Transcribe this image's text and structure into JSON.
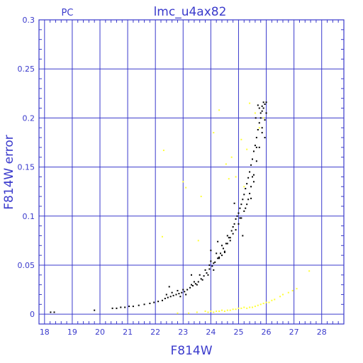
{
  "chart_data": {
    "type": "scatter",
    "title": "lmc_u4ax82",
    "corner_label": "PC",
    "xlabel": "F814W",
    "ylabel": "F814W error",
    "xlim": [
      17.8,
      28.8
    ],
    "ylim": [
      -0.01,
      0.3
    ],
    "xticks": [
      18,
      19,
      20,
      21,
      22,
      23,
      24,
      25,
      26,
      27,
      28
    ],
    "yticks": [
      0,
      0.05,
      0.1,
      0.15,
      0.2,
      0.25,
      0.3
    ],
    "ytick_labels": [
      "0",
      "0.05",
      "0.1",
      "0.15",
      "0.2",
      "0.25",
      "0.3"
    ],
    "grid": true,
    "colors": {
      "frame": "#3a3acc",
      "primary": "#000000",
      "secondary": "#ffff33"
    },
    "series": [
      {
        "color": "#000000",
        "points": [
          [
            18.22,
            0.002
          ],
          [
            18.35,
            0.002
          ],
          [
            19.8,
            0.004
          ],
          [
            20.45,
            0.006
          ],
          [
            20.6,
            0.006
          ],
          [
            20.75,
            0.007
          ],
          [
            20.9,
            0.007
          ],
          [
            21.05,
            0.008
          ],
          [
            21.2,
            0.008
          ],
          [
            21.4,
            0.009
          ],
          [
            21.6,
            0.01
          ],
          [
            21.8,
            0.011
          ],
          [
            21.95,
            0.012
          ],
          [
            22.1,
            0.013
          ],
          [
            22.25,
            0.014
          ],
          [
            22.35,
            0.016
          ],
          [
            22.45,
            0.017
          ],
          [
            22.55,
            0.018
          ],
          [
            22.65,
            0.019
          ],
          [
            22.75,
            0.02
          ],
          [
            22.85,
            0.021
          ],
          [
            22.95,
            0.022
          ],
          [
            23.05,
            0.023
          ],
          [
            23.15,
            0.025
          ],
          [
            23.25,
            0.027
          ],
          [
            23.35,
            0.029
          ],
          [
            23.45,
            0.031
          ],
          [
            23.55,
            0.033
          ],
          [
            23.65,
            0.036
          ],
          [
            23.75,
            0.039
          ],
          [
            23.85,
            0.042
          ],
          [
            23.95,
            0.046
          ],
          [
            24.05,
            0.049
          ],
          [
            24.15,
            0.053
          ],
          [
            24.25,
            0.057
          ],
          [
            24.35,
            0.062
          ],
          [
            24.45,
            0.067
          ],
          [
            24.55,
            0.072
          ],
          [
            24.65,
            0.078
          ],
          [
            24.75,
            0.085
          ],
          [
            24.85,
            0.092
          ],
          [
            24.95,
            0.1
          ],
          [
            25.05,
            0.108
          ],
          [
            25.15,
            0.117
          ],
          [
            25.25,
            0.128
          ],
          [
            25.35,
            0.139
          ],
          [
            25.45,
            0.152
          ],
          [
            25.55,
            0.166
          ],
          [
            25.65,
            0.18
          ],
          [
            25.75,
            0.195
          ],
          [
            25.85,
            0.207
          ],
          [
            25.95,
            0.214
          ],
          [
            26.0,
            0.216
          ],
          [
            22.4,
            0.02
          ],
          [
            22.6,
            0.022
          ],
          [
            22.9,
            0.018
          ],
          [
            23.1,
            0.02
          ],
          [
            23.3,
            0.03
          ],
          [
            23.5,
            0.03
          ],
          [
            23.6,
            0.04
          ],
          [
            23.8,
            0.045
          ],
          [
            23.9,
            0.04
          ],
          [
            24.0,
            0.054
          ],
          [
            24.1,
            0.045
          ],
          [
            24.2,
            0.062
          ],
          [
            24.3,
            0.058
          ],
          [
            24.4,
            0.07
          ],
          [
            24.5,
            0.063
          ],
          [
            24.6,
            0.08
          ],
          [
            24.7,
            0.075
          ],
          [
            24.8,
            0.089
          ],
          [
            24.9,
            0.097
          ],
          [
            25.0,
            0.103
          ],
          [
            25.1,
            0.112
          ],
          [
            25.2,
            0.122
          ],
          [
            25.3,
            0.133
          ],
          [
            25.4,
            0.145
          ],
          [
            25.5,
            0.158
          ],
          [
            25.6,
            0.172
          ],
          [
            25.7,
            0.188
          ],
          [
            25.8,
            0.2
          ],
          [
            25.9,
            0.21
          ],
          [
            25.25,
            0.108
          ],
          [
            25.35,
            0.117
          ],
          [
            25.45,
            0.13
          ],
          [
            25.55,
            0.142
          ],
          [
            25.65,
            0.156
          ],
          [
            25.75,
            0.17
          ],
          [
            25.85,
            0.185
          ],
          [
            25.95,
            0.198
          ],
          [
            26.0,
            0.205
          ],
          [
            25.8,
            0.205
          ],
          [
            25.85,
            0.212
          ],
          [
            25.9,
            0.216
          ],
          [
            25.75,
            0.21
          ],
          [
            25.7,
            0.213
          ],
          [
            25.85,
            0.19
          ],
          [
            25.95,
            0.18
          ],
          [
            25.62,
            0.2
          ],
          [
            25.5,
            0.14
          ],
          [
            25.45,
            0.118
          ],
          [
            25.4,
            0.123
          ],
          [
            25.3,
            0.112
          ],
          [
            25.2,
            0.105
          ],
          [
            25.1,
            0.098
          ],
          [
            25.05,
            0.098
          ],
          [
            25.0,
            0.092
          ],
          [
            24.9,
            0.086
          ],
          [
            24.8,
            0.082
          ],
          [
            24.7,
            0.078
          ],
          [
            24.6,
            0.072
          ],
          [
            24.5,
            0.064
          ],
          [
            24.4,
            0.06
          ],
          [
            24.3,
            0.057
          ],
          [
            24.1,
            0.052
          ],
          [
            23.95,
            0.05
          ],
          [
            23.7,
            0.035
          ],
          [
            23.4,
            0.033
          ],
          [
            23.0,
            0.025
          ],
          [
            22.8,
            0.024
          ],
          [
            22.5,
            0.028
          ],
          [
            24.85,
            0.113
          ],
          [
            25.15,
            0.08
          ],
          [
            24.0,
            0.065
          ],
          [
            23.3,
            0.04
          ],
          [
            24.25,
            0.074
          ],
          [
            25.55,
            0.135
          ],
          [
            25.65,
            0.17
          ]
        ]
      },
      {
        "color": "#ffff33",
        "points": [
          [
            22.3,
            0.167
          ],
          [
            22.25,
            0.079
          ],
          [
            23.0,
            0.135
          ],
          [
            23.1,
            0.129
          ],
          [
            23.55,
            0.075
          ],
          [
            23.65,
            0.12
          ],
          [
            24.1,
            0.185
          ],
          [
            24.3,
            0.208
          ],
          [
            24.55,
            0.153
          ],
          [
            24.65,
            0.138
          ],
          [
            24.75,
            0.16
          ],
          [
            24.9,
            0.14
          ],
          [
            25.1,
            0.178
          ],
          [
            25.2,
            0.13
          ],
          [
            25.3,
            0.168
          ],
          [
            25.4,
            0.215
          ],
          [
            25.6,
            0.205
          ],
          [
            25.75,
            0.19
          ],
          [
            25.9,
            0.2
          ],
          [
            22.8,
            0.001
          ],
          [
            23.2,
            0.001
          ],
          [
            23.5,
            0.002
          ],
          [
            23.8,
            0.003
          ],
          [
            24.0,
            0.003
          ],
          [
            24.2,
            0.003
          ],
          [
            24.4,
            0.004
          ],
          [
            24.6,
            0.004
          ],
          [
            24.8,
            0.005
          ],
          [
            25.0,
            0.006
          ],
          [
            25.2,
            0.007
          ],
          [
            25.4,
            0.007
          ],
          [
            25.6,
            0.008
          ],
          [
            25.8,
            0.01
          ],
          [
            26.0,
            0.012
          ],
          [
            26.2,
            0.014
          ],
          [
            26.5,
            0.018
          ],
          [
            26.8,
            0.022
          ],
          [
            27.1,
            0.026
          ],
          [
            27.55,
            0.044
          ],
          [
            23.9,
            0.002
          ],
          [
            24.1,
            0.002
          ],
          [
            24.3,
            0.003
          ],
          [
            24.5,
            0.003
          ],
          [
            24.7,
            0.004
          ],
          [
            24.9,
            0.005
          ],
          [
            25.1,
            0.006
          ],
          [
            25.3,
            0.006
          ],
          [
            25.5,
            0.007
          ],
          [
            25.7,
            0.009
          ],
          [
            25.9,
            0.011
          ],
          [
            26.1,
            0.012
          ],
          [
            26.3,
            0.015
          ],
          [
            26.6,
            0.02
          ],
          [
            26.95,
            0.024
          ]
        ]
      }
    ]
  }
}
